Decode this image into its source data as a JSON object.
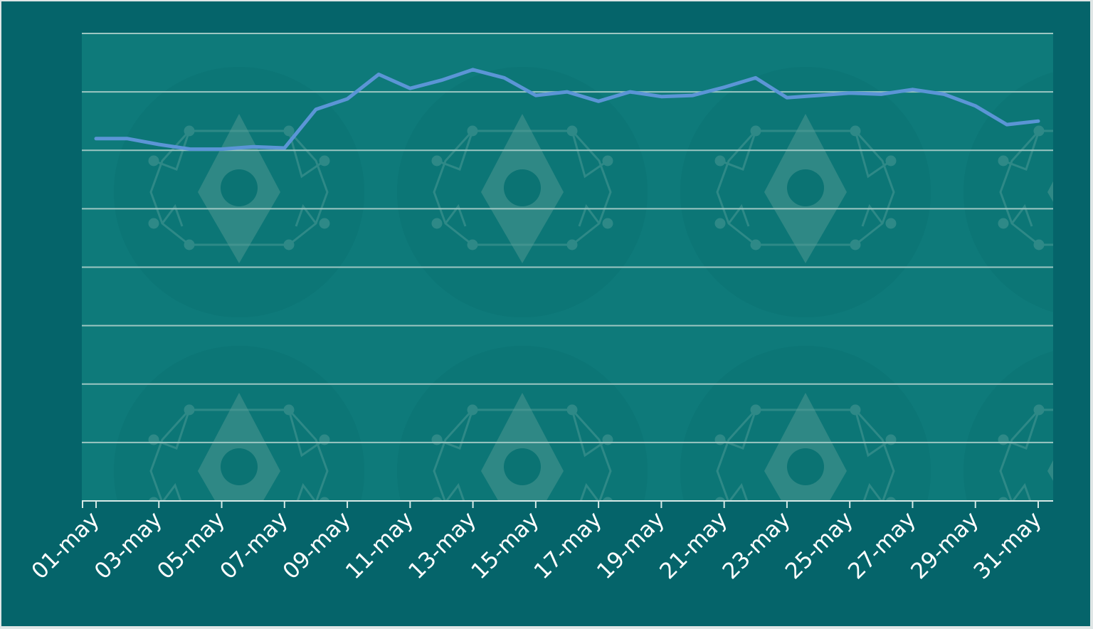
{
  "colors": {
    "frame_bg": "#05646a",
    "plot_bg": "#0e7a7a",
    "grid": "#9cc6c2",
    "axis": "#d7e9e7",
    "line": "#5b95d6",
    "tick_text": "#ffffff",
    "watermark": "#0b7474"
  },
  "watermark_icon": "eth-gear-icon",
  "chart_data": {
    "type": "line",
    "title": "",
    "xlabel": "",
    "ylabel": "",
    "y_ticks_shown": false,
    "ylim": [
      0,
      8
    ],
    "grid": "horizontal",
    "legend": "none",
    "x": [
      "01-may",
      "02-may",
      "03-may",
      "04-may",
      "05-may",
      "06-may",
      "07-may",
      "08-may",
      "09-may",
      "10-may",
      "11-may",
      "12-may",
      "13-may",
      "14-may",
      "15-may",
      "16-may",
      "17-may",
      "18-may",
      "19-may",
      "20-may",
      "21-may",
      "22-may",
      "23-may",
      "24-may",
      "25-may",
      "26-may",
      "27-may",
      "28-may",
      "29-may",
      "30-may",
      "31-may"
    ],
    "x_tick_labels": [
      "01-may",
      "03-may",
      "05-may",
      "07-may",
      "09-may",
      "11-may",
      "13-may",
      "15-may",
      "17-may",
      "19-may",
      "21-may",
      "23-may",
      "25-may",
      "27-may",
      "29-may",
      "31-may"
    ],
    "series": [
      {
        "values": [
          6.2,
          6.2,
          6.1,
          6.02,
          6.02,
          6.06,
          6.04,
          6.7,
          6.88,
          7.3,
          7.06,
          7.2,
          7.38,
          7.24,
          6.94,
          7.0,
          6.84,
          7.0,
          6.92,
          6.94,
          7.08,
          7.24,
          6.9,
          6.94,
          6.98,
          6.96,
          7.04,
          6.96,
          6.76,
          6.44,
          6.5
        ]
      }
    ]
  }
}
